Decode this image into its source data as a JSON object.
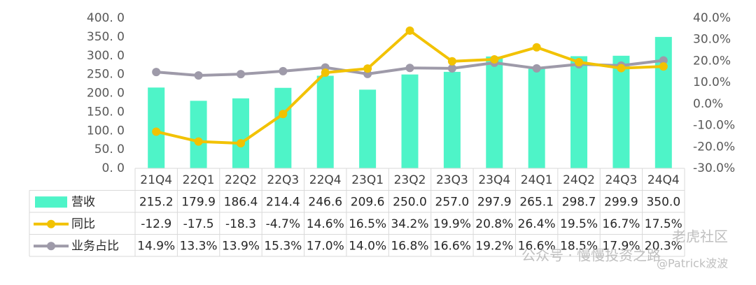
{
  "chart_data": {
    "type": "bar",
    "categories": [
      "21Q4",
      "22Q1",
      "22Q2",
      "22Q3",
      "22Q4",
      "23Q1",
      "23Q2",
      "23Q3",
      "23Q4",
      "24Q1",
      "24Q2",
      "24Q3",
      "24Q4"
    ],
    "series": [
      {
        "name": "营收",
        "type": "bar",
        "axis": "left",
        "color": "#4ef4c8",
        "values": [
          215.2,
          179.9,
          186.4,
          214.4,
          246.6,
          209.6,
          250.0,
          257.0,
          297.9,
          265.1,
          298.7,
          299.9,
          350.0
        ],
        "labels": [
          "215.2",
          "179.9",
          "186.4",
          "214.4",
          "246.6",
          "209.6",
          "250.0",
          "257.0",
          "297.9",
          "265.1",
          "298.7",
          "299.9",
          "350.0"
        ]
      },
      {
        "name": "同比",
        "type": "line",
        "axis": "right",
        "color": "#f2c200",
        "values": [
          -12.9,
          -17.5,
          -18.3,
          -4.7,
          14.6,
          16.5,
          34.2,
          19.9,
          20.8,
          26.4,
          19.5,
          16.7,
          17.5
        ],
        "labels": [
          "-12.9",
          "-17.5",
          "-18.3",
          "-4.7%",
          "14.6%",
          "16.5%",
          "34.2%",
          "19.9%",
          "20.8%",
          "26.4%",
          "19.5%",
          "16.7%",
          "17.5%"
        ]
      },
      {
        "name": "业务占比",
        "type": "line",
        "axis": "right",
        "color": "#9e9aa9",
        "values": [
          14.9,
          13.3,
          13.9,
          15.3,
          17.0,
          14.0,
          16.8,
          16.6,
          19.2,
          16.6,
          18.5,
          17.9,
          20.3
        ],
        "labels": [
          "14.9%",
          "13.3%",
          "13.9%",
          "15.3%",
          "17.0%",
          "14.0%",
          "16.8%",
          "16.6%",
          "19.2%",
          "16.6%",
          "18.5%",
          "17.9%",
          "20.3%"
        ]
      }
    ],
    "y_left": {
      "min": 0,
      "max": 400,
      "step": 50,
      "ticks": [
        "0. 0",
        "50. 0",
        "100. 0",
        "150. 0",
        "200. 0",
        "250. 0",
        "300. 0",
        "350. 0",
        "400. 0"
      ]
    },
    "y_right": {
      "min": -30,
      "max": 40,
      "step": 10,
      "ticks": [
        "-30.0%",
        "-20.0%",
        "-10.0%",
        "0.0%",
        "10.0%",
        "20.0%",
        "30.0%",
        "40.0%"
      ]
    },
    "grid": false,
    "legend": "data-table"
  },
  "watermark": {
    "line1": "老虎社区",
    "line2": "公众号 · 慢慢投资之路",
    "line3": "@Patrick波波"
  }
}
